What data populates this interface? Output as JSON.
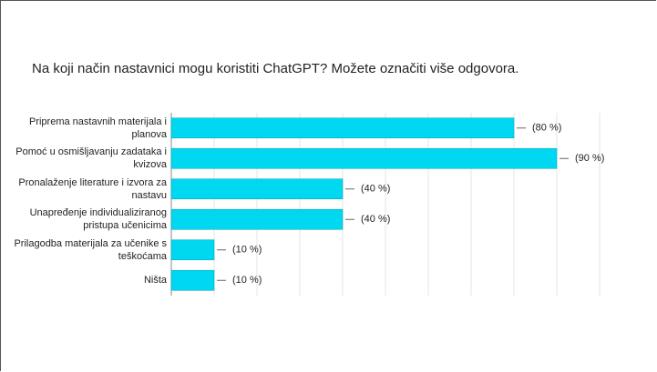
{
  "chart_data": {
    "type": "bar",
    "orientation": "horizontal",
    "title": "Na koji način nastavnici mogu koristiti ChatGPT?  Možete označiti više odgovora.",
    "categories": [
      "Priprema nastavnih materijala i planova",
      "Pomoć u osmišljavanju zadataka i kvizova",
      "Pronalaženje literature i izvora za nastavu",
      "Unapređenje individualiziranog pristupa učenicima",
      "Prilagodba materijala za učenike s teškoćama",
      "Ništa"
    ],
    "values": [
      80,
      90,
      40,
      40,
      10,
      10
    ],
    "value_labels": [
      "(80 %)",
      "(90 %)",
      "(40 %)",
      "(40 %)",
      "(10 %)",
      "(10 %)"
    ],
    "color": "#00d7f0",
    "xlim": [
      0,
      100
    ],
    "xticks": [
      0,
      10,
      20,
      30,
      40,
      50,
      60,
      70,
      80,
      90,
      100
    ],
    "grid": true
  }
}
